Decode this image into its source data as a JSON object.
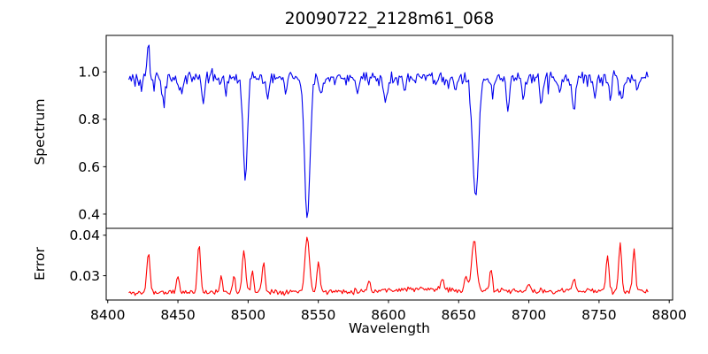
{
  "chart_data": {
    "type": "line",
    "title": "20090722_2128m61_068",
    "xlabel": "Wavelength",
    "xlim": [
      8398.9,
      8802.4
    ],
    "x_data_range": [
      8415,
      8785
    ],
    "x_step": 0.9,
    "x_ticks": {
      "values": [
        8400,
        8450,
        8500,
        8550,
        8600,
        8650,
        8700,
        8750,
        8800
      ],
      "labels": [
        "8400",
        "8450",
        "8500",
        "8550",
        "8600",
        "8650",
        "8700",
        "8750",
        "8800"
      ]
    },
    "grid": false,
    "legend": "none",
    "panels": [
      {
        "name": "spectrum-panel",
        "ylabel": "Spectrum",
        "ylim": [
          0.34,
          1.154
        ],
        "y_ticks": {
          "values": [
            0.4,
            0.6,
            0.8,
            1.0
          ],
          "labels": [
            "0.4",
            "0.6",
            "0.8",
            "1.0"
          ]
        },
        "series": {
          "name": "normalized-spectrum",
          "color": "#0000ee",
          "continuum_level": 0.975,
          "noise_amplitude": 0.021,
          "noise_seed": 3,
          "absorption_lines": [
            {
              "wavelength": 8424.0,
              "min_value": 0.93,
              "sigma": 0.8
            },
            {
              "wavelength": 8433.0,
              "min_value": 0.925,
              "sigma": 0.8
            },
            {
              "wavelength": 8440.0,
              "min_value": 0.876,
              "sigma": 1.0
            },
            {
              "wavelength": 8452.0,
              "min_value": 0.902,
              "sigma": 0.9
            },
            {
              "wavelength": 8468.0,
              "min_value": 0.872,
              "sigma": 1.0
            },
            {
              "wavelength": 8484.0,
              "min_value": 0.906,
              "sigma": 0.9
            },
            {
              "wavelength": 8498.0,
              "min_value": 0.552,
              "sigma": 1.5
            },
            {
              "wavelength": 8514.0,
              "min_value": 0.883,
              "sigma": 1.0
            },
            {
              "wavelength": 8527.0,
              "min_value": 0.93,
              "sigma": 0.8
            },
            {
              "wavelength": 8542.1,
              "min_value": 0.374,
              "sigma": 1.9
            },
            {
              "wavelength": 8552.0,
              "min_value": 0.896,
              "sigma": 1.0
            },
            {
              "wavelength": 8578.0,
              "min_value": 0.906,
              "sigma": 0.9
            },
            {
              "wavelength": 8598.0,
              "min_value": 0.888,
              "sigma": 1.0
            },
            {
              "wavelength": 8612.0,
              "min_value": 0.916,
              "sigma": 0.9
            },
            {
              "wavelength": 8634.0,
              "min_value": 0.926,
              "sigma": 0.9
            },
            {
              "wavelength": 8648.0,
              "min_value": 0.918,
              "sigma": 0.9
            },
            {
              "wavelength": 8662.1,
              "min_value": 0.463,
              "sigma": 2.1
            },
            {
              "wavelength": 8674.0,
              "min_value": 0.896,
              "sigma": 0.9
            },
            {
              "wavelength": 8685.0,
              "min_value": 0.832,
              "sigma": 1.0
            },
            {
              "wavelength": 8696.0,
              "min_value": 0.872,
              "sigma": 0.9
            },
            {
              "wavelength": 8709.0,
              "min_value": 0.857,
              "sigma": 1.0
            },
            {
              "wavelength": 8722.0,
              "min_value": 0.916,
              "sigma": 0.9
            },
            {
              "wavelength": 8732.0,
              "min_value": 0.838,
              "sigma": 1.1
            },
            {
              "wavelength": 8747.0,
              "min_value": 0.9,
              "sigma": 0.9
            },
            {
              "wavelength": 8758.0,
              "min_value": 0.878,
              "sigma": 0.9
            },
            {
              "wavelength": 8766.0,
              "min_value": 0.868,
              "sigma": 1.0
            },
            {
              "wavelength": 8777.0,
              "min_value": 0.925,
              "sigma": 0.8
            }
          ],
          "emission_spikes": [
            {
              "wavelength": 8429.0,
              "peak_value": 1.128,
              "sigma": 0.7
            }
          ]
        }
      },
      {
        "name": "error-panel",
        "ylabel": "Error",
        "ylim": [
          0.024,
          0.0417
        ],
        "y_ticks": {
          "values": [
            0.03,
            0.04
          ],
          "labels": [
            "0.03",
            "0.04"
          ]
        },
        "series": {
          "name": "error-spectrum",
          "color": "#ff0000",
          "noise_amplitude": 0.0005,
          "noise_seed": 11,
          "baseline_points": [
            [
              8415,
              0.0257
            ],
            [
              8440,
              0.0259
            ],
            [
              8470,
              0.0259
            ],
            [
              8500,
              0.0261
            ],
            [
              8530,
              0.0261
            ],
            [
              8560,
              0.0261
            ],
            [
              8590,
              0.0263
            ],
            [
              8615,
              0.0267
            ],
            [
              8640,
              0.0266
            ],
            [
              8665,
              0.0263
            ],
            [
              8690,
              0.0261
            ],
            [
              8715,
              0.0262
            ],
            [
              8740,
              0.0264
            ],
            [
              8762,
              0.0262
            ],
            [
              8785,
              0.0261
            ]
          ],
          "peaks": [
            {
              "wavelength": 8429.0,
              "peak_value": 0.036,
              "sigma": 1.1
            },
            {
              "wavelength": 8450.0,
              "peak_value": 0.0301,
              "sigma": 0.9
            },
            {
              "wavelength": 8465.0,
              "peak_value": 0.0378,
              "sigma": 1.1
            },
            {
              "wavelength": 8481.0,
              "peak_value": 0.0296,
              "sigma": 0.9
            },
            {
              "wavelength": 8490.0,
              "peak_value": 0.0302,
              "sigma": 0.8
            },
            {
              "wavelength": 8497.0,
              "peak_value": 0.0366,
              "sigma": 1.1
            },
            {
              "wavelength": 8503.0,
              "peak_value": 0.0315,
              "sigma": 0.8
            },
            {
              "wavelength": 8511.0,
              "peak_value": 0.0334,
              "sigma": 1.0
            },
            {
              "wavelength": 8542.1,
              "peak_value": 0.0403,
              "sigma": 1.5
            },
            {
              "wavelength": 8550.0,
              "peak_value": 0.0341,
              "sigma": 1.0
            },
            {
              "wavelength": 8586.0,
              "peak_value": 0.0289,
              "sigma": 0.9
            },
            {
              "wavelength": 8638.0,
              "peak_value": 0.0293,
              "sigma": 1.0
            },
            {
              "wavelength": 8655.0,
              "peak_value": 0.03,
              "sigma": 1.0
            },
            {
              "wavelength": 8661.0,
              "peak_value": 0.0391,
              "sigma": 1.7
            },
            {
              "wavelength": 8673.0,
              "peak_value": 0.0313,
              "sigma": 1.0
            },
            {
              "wavelength": 8700.0,
              "peak_value": 0.0283,
              "sigma": 0.9
            },
            {
              "wavelength": 8732.0,
              "peak_value": 0.029,
              "sigma": 1.0
            },
            {
              "wavelength": 8756.0,
              "peak_value": 0.0352,
              "sigma": 1.0
            },
            {
              "wavelength": 8765.0,
              "peak_value": 0.0377,
              "sigma": 1.0
            },
            {
              "wavelength": 8775.0,
              "peak_value": 0.0367,
              "sigma": 1.0
            }
          ]
        }
      }
    ]
  }
}
